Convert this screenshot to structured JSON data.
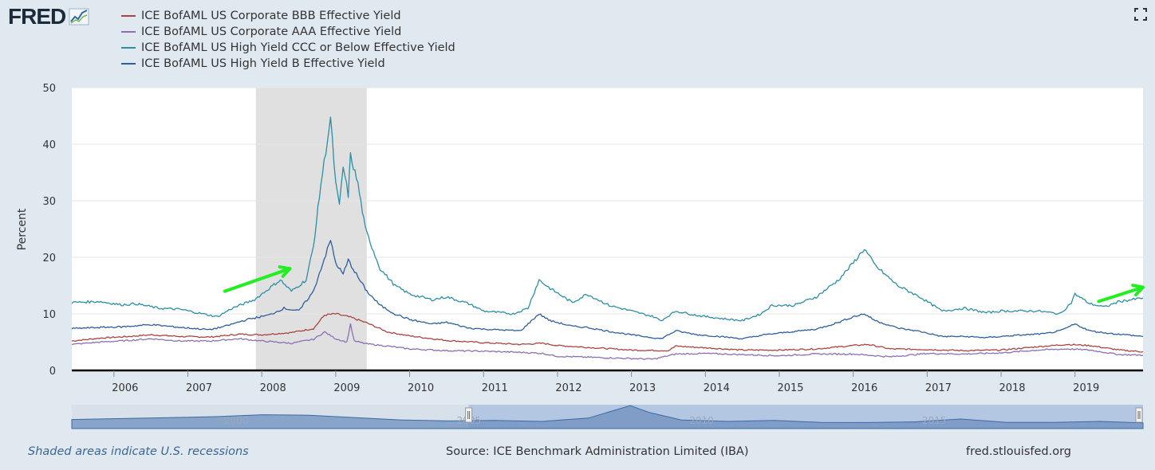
{
  "logo": {
    "text": "FRED"
  },
  "footer": {
    "note": "Shaded areas indicate U.S. recessions",
    "source": "Source: ICE Benchmark Administration Limited (IBA)",
    "url": "fred.stlouisfed.org"
  },
  "colors": {
    "background": "#e1e9f0",
    "plot_background": "#ffffff",
    "recession_shade": "#e0e0e0",
    "annotation_arrow": "#22ee22"
  },
  "chart_data": {
    "type": "line",
    "title": "",
    "xlabel": "",
    "ylabel": "Percent",
    "xlim": [
      2005.43,
      2019.92
    ],
    "ylim": [
      0,
      50
    ],
    "yticks": [
      0,
      10,
      20,
      30,
      40,
      50
    ],
    "xticks": [
      "2006",
      "2007",
      "2008",
      "2009",
      "2010",
      "2011",
      "2012",
      "2013",
      "2014",
      "2015",
      "2016",
      "2017",
      "2018",
      "2019"
    ],
    "grid": true,
    "legend_position": "top-left",
    "recessions": [
      [
        2007.92,
        2009.42
      ]
    ],
    "navigator": {
      "labels": [
        "2000",
        "2005",
        "2010",
        "2015"
      ],
      "selected_range": [
        2005.43,
        2019.92
      ]
    },
    "annotations": [
      {
        "type": "arrow",
        "from": [
          2007.5,
          14
        ],
        "to": [
          2008.38,
          18
        ]
      },
      {
        "type": "arrow",
        "from": [
          2019.32,
          12.2
        ],
        "to": [
          2019.92,
          14.7
        ]
      }
    ],
    "series": [
      {
        "name": "ICE BofAML US Corporate BBB Effective Yield",
        "color": "#a94442",
        "points": [
          [
            2005.43,
            5.2
          ],
          [
            2005.8,
            5.7
          ],
          [
            2006.2,
            6.0
          ],
          [
            2006.5,
            6.3
          ],
          [
            2006.9,
            6.0
          ],
          [
            2007.3,
            5.9
          ],
          [
            2007.7,
            6.4
          ],
          [
            2008.0,
            6.3
          ],
          [
            2008.4,
            6.7
          ],
          [
            2008.7,
            7.4
          ],
          [
            2008.85,
            9.8
          ],
          [
            2009.0,
            10.0
          ],
          [
            2009.2,
            9.4
          ],
          [
            2009.42,
            8.4
          ],
          [
            2009.7,
            6.8
          ],
          [
            2010.0,
            6.1
          ],
          [
            2010.5,
            5.3
          ],
          [
            2011.0,
            4.9
          ],
          [
            2011.5,
            4.6
          ],
          [
            2011.8,
            4.8
          ],
          [
            2012.0,
            4.4
          ],
          [
            2012.5,
            4.0
          ],
          [
            2013.0,
            3.6
          ],
          [
            2013.5,
            3.5
          ],
          [
            2013.6,
            4.3
          ],
          [
            2014.0,
            4.0
          ],
          [
            2014.5,
            3.6
          ],
          [
            2015.0,
            3.6
          ],
          [
            2015.5,
            3.8
          ],
          [
            2016.0,
            4.4
          ],
          [
            2016.2,
            4.6
          ],
          [
            2016.5,
            3.8
          ],
          [
            2017.0,
            3.7
          ],
          [
            2017.5,
            3.5
          ],
          [
            2018.0,
            3.6
          ],
          [
            2018.5,
            4.2
          ],
          [
            2018.9,
            4.6
          ],
          [
            2019.2,
            4.4
          ],
          [
            2019.6,
            3.6
          ],
          [
            2019.92,
            3.3
          ]
        ]
      },
      {
        "name": "ICE BofAML US Corporate AAA Effective Yield",
        "color": "#8b6fb4",
        "points": [
          [
            2005.43,
            4.6
          ],
          [
            2005.8,
            5.0
          ],
          [
            2006.2,
            5.3
          ],
          [
            2006.5,
            5.6
          ],
          [
            2006.9,
            5.2
          ],
          [
            2007.3,
            5.2
          ],
          [
            2007.7,
            5.6
          ],
          [
            2008.0,
            5.2
          ],
          [
            2008.4,
            4.8
          ],
          [
            2008.7,
            5.5
          ],
          [
            2008.85,
            6.8
          ],
          [
            2009.0,
            5.6
          ],
          [
            2009.15,
            5.0
          ],
          [
            2009.2,
            8.2
          ],
          [
            2009.25,
            5.2
          ],
          [
            2009.42,
            4.7
          ],
          [
            2009.7,
            4.3
          ],
          [
            2010.0,
            3.8
          ],
          [
            2010.5,
            3.5
          ],
          [
            2011.0,
            3.4
          ],
          [
            2011.5,
            3.2
          ],
          [
            2011.8,
            3.0
          ],
          [
            2012.0,
            2.5
          ],
          [
            2012.5,
            2.3
          ],
          [
            2013.0,
            2.1
          ],
          [
            2013.3,
            2.0
          ],
          [
            2013.6,
            2.9
          ],
          [
            2014.0,
            3.0
          ],
          [
            2014.5,
            2.8
          ],
          [
            2015.0,
            2.6
          ],
          [
            2015.5,
            2.9
          ],
          [
            2016.0,
            2.9
          ],
          [
            2016.5,
            2.4
          ],
          [
            2017.0,
            3.0
          ],
          [
            2017.5,
            2.9
          ],
          [
            2018.0,
            3.1
          ],
          [
            2018.5,
            3.6
          ],
          [
            2018.9,
            3.8
          ],
          [
            2019.2,
            3.6
          ],
          [
            2019.6,
            2.8
          ],
          [
            2019.92,
            2.7
          ]
        ]
      },
      {
        "name": "ICE BofAML US High Yield CCC or Below Effective Yield",
        "color": "#2d8ea4",
        "points": [
          [
            2005.43,
            12.0
          ],
          [
            2005.8,
            12.2
          ],
          [
            2006.1,
            11.6
          ],
          [
            2006.3,
            11.8
          ],
          [
            2006.6,
            11.0
          ],
          [
            2006.9,
            10.8
          ],
          [
            2007.2,
            10.0
          ],
          [
            2007.4,
            9.5
          ],
          [
            2007.6,
            11.0
          ],
          [
            2007.9,
            12.5
          ],
          [
            2008.1,
            14.5
          ],
          [
            2008.25,
            16.0
          ],
          [
            2008.4,
            14.0
          ],
          [
            2008.6,
            16.0
          ],
          [
            2008.7,
            22.0
          ],
          [
            2008.8,
            33.0
          ],
          [
            2008.93,
            44.5
          ],
          [
            2009.0,
            33.0
          ],
          [
            2009.05,
            29.0
          ],
          [
            2009.1,
            36.0
          ],
          [
            2009.17,
            31.0
          ],
          [
            2009.2,
            38.0
          ],
          [
            2009.3,
            33.0
          ],
          [
            2009.4,
            25.0
          ],
          [
            2009.6,
            18.0
          ],
          [
            2009.8,
            15.0
          ],
          [
            2010.0,
            13.5
          ],
          [
            2010.3,
            12.5
          ],
          [
            2010.5,
            13.0
          ],
          [
            2010.8,
            11.8
          ],
          [
            2011.0,
            10.5
          ],
          [
            2011.4,
            10.0
          ],
          [
            2011.6,
            11.0
          ],
          [
            2011.75,
            16.0
          ],
          [
            2011.9,
            14.5
          ],
          [
            2012.2,
            12.0
          ],
          [
            2012.4,
            13.5
          ],
          [
            2012.7,
            11.5
          ],
          [
            2013.0,
            10.5
          ],
          [
            2013.3,
            9.5
          ],
          [
            2013.4,
            8.8
          ],
          [
            2013.6,
            10.5
          ],
          [
            2013.9,
            9.7
          ],
          [
            2014.2,
            9.2
          ],
          [
            2014.5,
            8.8
          ],
          [
            2014.75,
            10.0
          ],
          [
            2014.9,
            11.5
          ],
          [
            2015.2,
            11.5
          ],
          [
            2015.5,
            13.0
          ],
          [
            2015.8,
            16.0
          ],
          [
            2016.0,
            19.0
          ],
          [
            2016.15,
            21.5
          ],
          [
            2016.3,
            18.5
          ],
          [
            2016.6,
            15.0
          ],
          [
            2016.9,
            13.0
          ],
          [
            2017.2,
            10.5
          ],
          [
            2017.5,
            11.0
          ],
          [
            2017.8,
            10.2
          ],
          [
            2018.0,
            10.5
          ],
          [
            2018.5,
            10.5
          ],
          [
            2018.8,
            10.0
          ],
          [
            2018.95,
            12.0
          ],
          [
            2019.0,
            13.5
          ],
          [
            2019.2,
            11.8
          ],
          [
            2019.4,
            11.2
          ],
          [
            2019.6,
            12.2
          ],
          [
            2019.92,
            12.8
          ]
        ]
      },
      {
        "name": "ICE BofAML US High Yield B Effective Yield",
        "color": "#2d5f9a",
        "points": [
          [
            2005.43,
            7.4
          ],
          [
            2005.8,
            7.6
          ],
          [
            2006.1,
            7.7
          ],
          [
            2006.5,
            8.1
          ],
          [
            2006.9,
            7.6
          ],
          [
            2007.3,
            7.2
          ],
          [
            2007.5,
            7.8
          ],
          [
            2007.8,
            9.0
          ],
          [
            2008.1,
            9.8
          ],
          [
            2008.3,
            11.0
          ],
          [
            2008.5,
            10.5
          ],
          [
            2008.7,
            14.0
          ],
          [
            2008.8,
            18.0
          ],
          [
            2008.93,
            23.0
          ],
          [
            2009.0,
            19.0
          ],
          [
            2009.1,
            17.0
          ],
          [
            2009.17,
            19.5
          ],
          [
            2009.3,
            16.5
          ],
          [
            2009.42,
            14.0
          ],
          [
            2009.6,
            11.5
          ],
          [
            2009.8,
            10.0
          ],
          [
            2010.0,
            9.0
          ],
          [
            2010.3,
            8.2
          ],
          [
            2010.5,
            8.5
          ],
          [
            2010.8,
            7.5
          ],
          [
            2011.0,
            7.3
          ],
          [
            2011.5,
            7.0
          ],
          [
            2011.75,
            10.0
          ],
          [
            2011.9,
            8.8
          ],
          [
            2012.2,
            7.8
          ],
          [
            2012.4,
            7.6
          ],
          [
            2012.7,
            6.9
          ],
          [
            2013.0,
            6.3
          ],
          [
            2013.4,
            5.6
          ],
          [
            2013.6,
            7.0
          ],
          [
            2013.9,
            6.3
          ],
          [
            2014.2,
            6.0
          ],
          [
            2014.5,
            5.6
          ],
          [
            2014.8,
            6.3
          ],
          [
            2015.0,
            6.6
          ],
          [
            2015.5,
            7.3
          ],
          [
            2015.8,
            8.5
          ],
          [
            2016.0,
            9.5
          ],
          [
            2016.15,
            10.0
          ],
          [
            2016.3,
            8.8
          ],
          [
            2016.6,
            7.5
          ],
          [
            2016.9,
            6.9
          ],
          [
            2017.2,
            6.0
          ],
          [
            2017.5,
            6.0
          ],
          [
            2017.8,
            5.8
          ],
          [
            2018.2,
            6.2
          ],
          [
            2018.6,
            6.5
          ],
          [
            2018.8,
            7.0
          ],
          [
            2019.0,
            8.2
          ],
          [
            2019.2,
            7.0
          ],
          [
            2019.5,
            6.5
          ],
          [
            2019.7,
            6.3
          ],
          [
            2019.92,
            6.0
          ]
        ]
      }
    ]
  }
}
